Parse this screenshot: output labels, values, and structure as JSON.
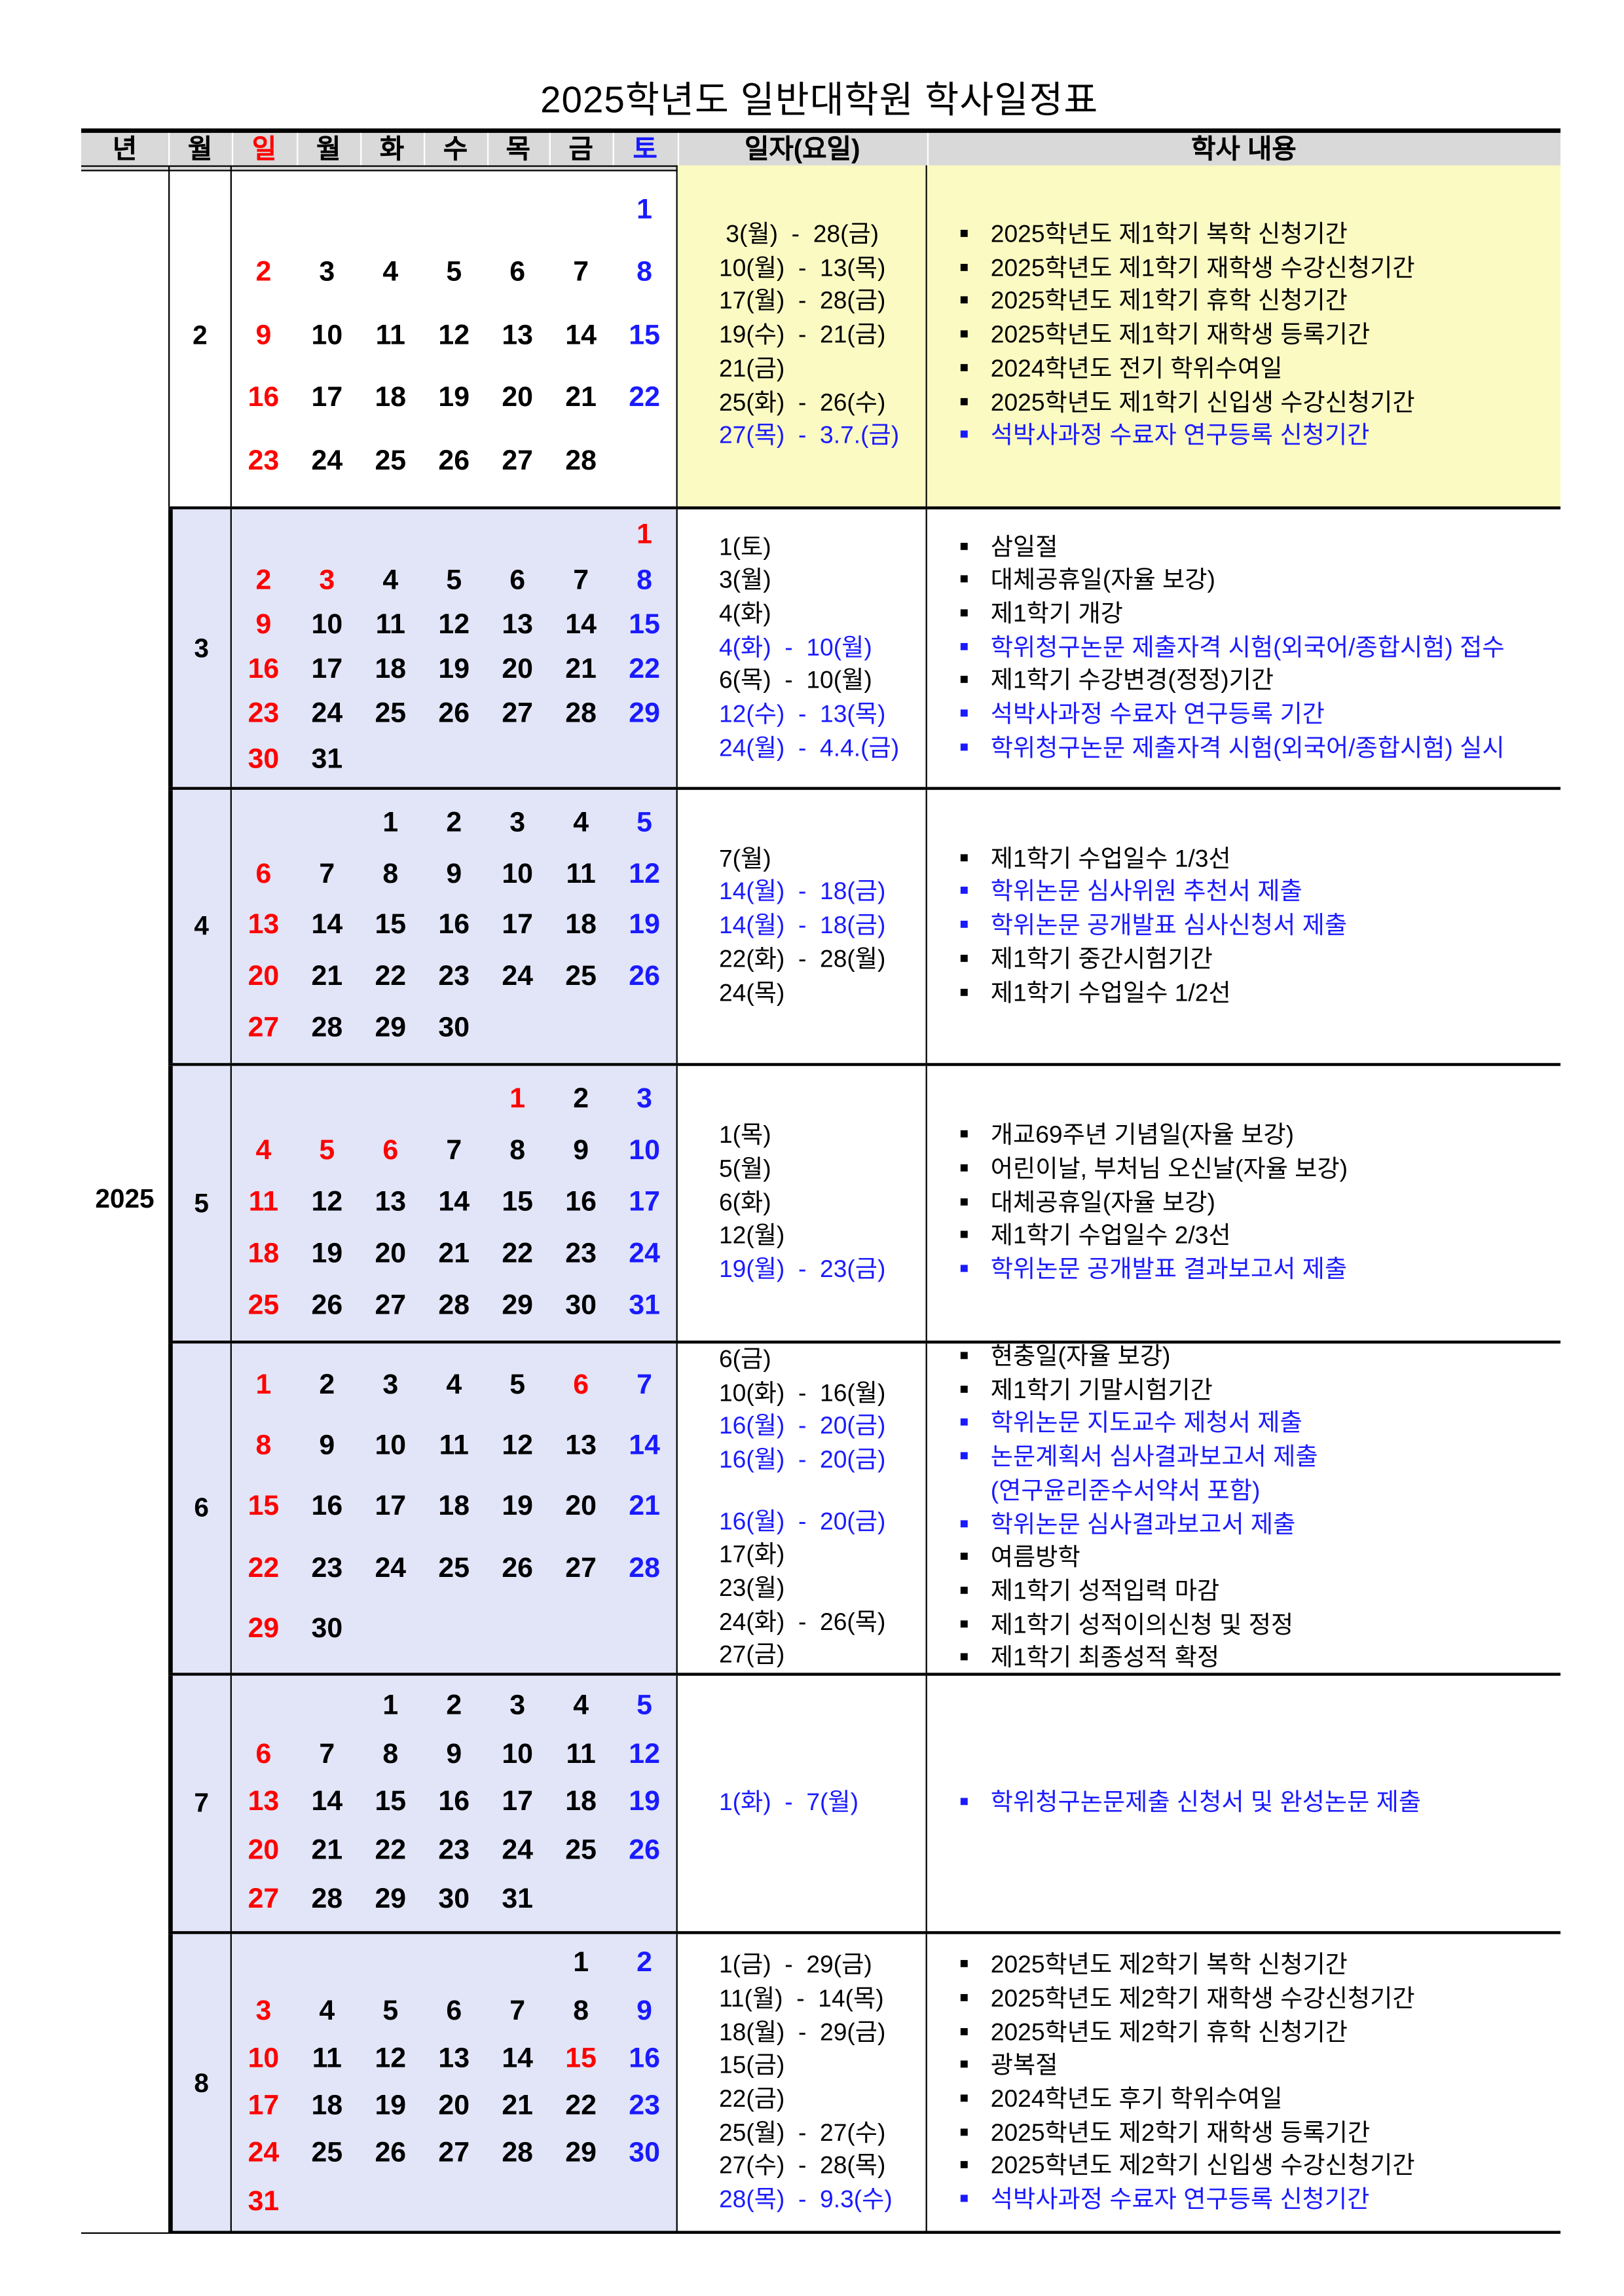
{
  "title": "2025학년도 일반대학원 학사일정표",
  "header": [
    "년",
    "월",
    "일",
    "월",
    "화",
    "수",
    "목",
    "금",
    "토",
    "일자(요일)",
    "학사 내용"
  ],
  "year": "2025",
  "colors": {
    "sunday": "#ff0000",
    "saturday": "#1a1aff",
    "highlight": "#1a1aff",
    "feb_bg": "#fafac2",
    "cal_bg": "#e1e5f7",
    "header_bg": "#d9d9d9"
  },
  "months": [
    {
      "month": "2",
      "weeks": [
        [
          null,
          null,
          null,
          null,
          null,
          null,
          1
        ],
        [
          2,
          3,
          4,
          5,
          6,
          7,
          8
        ],
        [
          9,
          10,
          11,
          12,
          13,
          14,
          15
        ],
        [
          16,
          17,
          18,
          19,
          20,
          21,
          22
        ],
        [
          23,
          24,
          25,
          26,
          27,
          28,
          null
        ]
      ],
      "holidays": [],
      "rows": [
        {
          "date": " 3(월)  -  28(금)",
          "text": "2025학년도 제1학기 복학 신청기간",
          "blue": false
        },
        {
          "date": "10(월)  -  13(목)",
          "text": "2025학년도 제1학기 재학생 수강신청기간",
          "blue": false
        },
        {
          "date": "17(월)  -  28(금)",
          "text": "2025학년도 제1학기 휴학 신청기간",
          "blue": false
        },
        {
          "date": "19(수)  -  21(금)",
          "text": "2025학년도 제1학기 재학생 등록기간",
          "blue": false
        },
        {
          "date": "21(금)",
          "text": "2024학년도 전기 학위수여일",
          "blue": false
        },
        {
          "date": "25(화)  -  26(수)",
          "text": "2025학년도 제1학기 신입생 수강신청기간",
          "blue": false
        },
        {
          "date": "27(목)  -  3.7.(금)",
          "text": "석박사과정 수료자 연구등록 신청기간",
          "blue": true
        }
      ]
    },
    {
      "month": "3",
      "weeks": [
        [
          null,
          null,
          null,
          null,
          null,
          null,
          1
        ],
        [
          2,
          3,
          4,
          5,
          6,
          7,
          8
        ],
        [
          9,
          10,
          11,
          12,
          13,
          14,
          15
        ],
        [
          16,
          17,
          18,
          19,
          20,
          21,
          22
        ],
        [
          23,
          24,
          25,
          26,
          27,
          28,
          29
        ],
        [
          30,
          31,
          null,
          null,
          null,
          null,
          null
        ]
      ],
      "holidays": [
        1,
        3
      ],
      "rows": [
        {
          "date": "1(토)",
          "text": "삼일절",
          "blue": false
        },
        {
          "date": "3(월)",
          "text": "대체공휴일(자율 보강)",
          "blue": false
        },
        {
          "date": "4(화)",
          "text": "제1학기 개강",
          "blue": false
        },
        {
          "date": "4(화)  -  10(월)",
          "text": "학위청구논문 제출자격 시험(외국어/종합시험) 접수",
          "blue": true
        },
        {
          "date": "6(목)  -  10(월)",
          "text": "제1학기 수강변경(정정)기간",
          "blue": false
        },
        {
          "date": "12(수)  -  13(목)",
          "text": "석박사과정 수료자 연구등록 기간",
          "blue": true
        },
        {
          "date": "24(월)  -  4.4.(금)",
          "text": "학위청구논문 제출자격 시험(외국어/종합시험) 실시",
          "blue": true
        }
      ]
    },
    {
      "month": "4",
      "weeks": [
        [
          null,
          null,
          1,
          2,
          3,
          4,
          5
        ],
        [
          6,
          7,
          8,
          9,
          10,
          11,
          12
        ],
        [
          13,
          14,
          15,
          16,
          17,
          18,
          19
        ],
        [
          20,
          21,
          22,
          23,
          24,
          25,
          26
        ],
        [
          27,
          28,
          29,
          30,
          null,
          null,
          null
        ]
      ],
      "holidays": [],
      "rows": [
        {
          "date": "7(월)",
          "text": "제1학기 수업일수 1/3선",
          "blue": false
        },
        {
          "date": "14(월)  -  18(금)",
          "text": "학위논문 심사위원 추천서 제출",
          "blue": true
        },
        {
          "date": "14(월)  -  18(금)",
          "text": "학위논문 공개발표 심사신청서 제출",
          "blue": true
        },
        {
          "date": "22(화)  -  28(월)",
          "text": "제1학기 중간시험기간",
          "blue": false
        },
        {
          "date": "24(목)",
          "text": "제1학기 수업일수 1/2선",
          "blue": false
        }
      ]
    },
    {
      "month": "5",
      "weeks": [
        [
          null,
          null,
          null,
          null,
          1,
          2,
          3
        ],
        [
          4,
          5,
          6,
          7,
          8,
          9,
          10
        ],
        [
          11,
          12,
          13,
          14,
          15,
          16,
          17
        ],
        [
          18,
          19,
          20,
          21,
          22,
          23,
          24
        ],
        [
          25,
          26,
          27,
          28,
          29,
          30,
          31
        ]
      ],
      "holidays": [
        1,
        5,
        6
      ],
      "rows": [
        {
          "date": "1(목)",
          "text": "개교69주년 기념일(자율 보강)",
          "blue": false
        },
        {
          "date": "5(월)",
          "text": "어린이날, 부처님 오신날(자율 보강)",
          "blue": false
        },
        {
          "date": "6(화)",
          "text": "대체공휴일(자율 보강)",
          "blue": false
        },
        {
          "date": "12(월)",
          "text": "제1학기 수업일수 2/3선",
          "blue": false
        },
        {
          "date": "19(월)  -  23(금)",
          "text": "학위논문 공개발표 결과보고서 제출",
          "blue": true
        }
      ]
    },
    {
      "month": "6",
      "weeks": [
        [
          1,
          2,
          3,
          4,
          5,
          6,
          7
        ],
        [
          8,
          9,
          10,
          11,
          12,
          13,
          14
        ],
        [
          15,
          16,
          17,
          18,
          19,
          20,
          21
        ],
        [
          22,
          23,
          24,
          25,
          26,
          27,
          28
        ],
        [
          29,
          30,
          null,
          null,
          null,
          null,
          null
        ]
      ],
      "holidays": [
        6
      ],
      "rows": [
        {
          "date": "6(금)",
          "text": "현충일(자율 보강)",
          "blue": false
        },
        {
          "date": "10(화)  -  16(월)",
          "text": "제1학기 기말시험기간",
          "blue": false
        },
        {
          "date": "16(월)  -  20(금)",
          "text": "학위논문 지도교수 제청서 제출",
          "blue": true
        },
        {
          "date": "16(월)  -  20(금)",
          "text": "논문계획서 심사결과보고서 제출",
          "blue": true
        },
        {
          "date": "",
          "text": "(연구윤리준수서약서 포함)",
          "blue": true,
          "cont": true
        },
        {
          "date": "16(월)  -  20(금)",
          "text": "학위논문 심사결과보고서 제출",
          "blue": true
        },
        {
          "date": "17(화)",
          "text": "여름방학",
          "blue": false
        },
        {
          "date": "23(월)",
          "text": "제1학기 성적입력 마감",
          "blue": false
        },
        {
          "date": "24(화)  -  26(목)",
          "text": "제1학기 성적이의신청 및 정정",
          "blue": false
        },
        {
          "date": "27(금)",
          "text": "제1학기 최종성적 확정",
          "blue": false
        }
      ]
    },
    {
      "month": "7",
      "weeks": [
        [
          null,
          null,
          1,
          2,
          3,
          4,
          5
        ],
        [
          6,
          7,
          8,
          9,
          10,
          11,
          12
        ],
        [
          13,
          14,
          15,
          16,
          17,
          18,
          19
        ],
        [
          20,
          21,
          22,
          23,
          24,
          25,
          26
        ],
        [
          27,
          28,
          29,
          30,
          31,
          null,
          null
        ]
      ],
      "holidays": [],
      "rows": [
        {
          "date": "1(화)  -  7(월)",
          "text": "학위청구논문제출 신청서 및 완성논문 제출",
          "blue": true
        }
      ]
    },
    {
      "month": "8",
      "weeks": [
        [
          null,
          null,
          null,
          null,
          null,
          1,
          2
        ],
        [
          3,
          4,
          5,
          6,
          7,
          8,
          9
        ],
        [
          10,
          11,
          12,
          13,
          14,
          15,
          16
        ],
        [
          17,
          18,
          19,
          20,
          21,
          22,
          23
        ],
        [
          24,
          25,
          26,
          27,
          28,
          29,
          30
        ],
        [
          31,
          null,
          null,
          null,
          null,
          null,
          null
        ]
      ],
      "holidays": [
        15
      ],
      "rows": [
        {
          "date": "1(금)  -  29(금)",
          "text": "2025학년도 제2학기 복학 신청기간",
          "blue": false
        },
        {
          "date": "11(월)  -  14(목)",
          "text": "2025학년도 제2학기 재학생 수강신청기간",
          "blue": false
        },
        {
          "date": "18(월)  -  29(금)",
          "text": "2025학년도 제2학기 휴학 신청기간",
          "blue": false
        },
        {
          "date": "15(금)",
          "text": "광복절",
          "blue": false
        },
        {
          "date": "22(금)",
          "text": "2024학년도 후기 학위수여일",
          "blue": false
        },
        {
          "date": "25(월)  -  27(수)",
          "text": "2025학년도 제2학기 재학생 등록기간",
          "blue": false
        },
        {
          "date": "27(수)  -  28(목)",
          "text": "2025학년도 제2학기 신입생 수강신청기간",
          "blue": false
        },
        {
          "date": "28(목)  -  9.3(수)",
          "text": "석박사과정 수료자 연구등록 신청기간",
          "blue": true
        }
      ]
    }
  ]
}
